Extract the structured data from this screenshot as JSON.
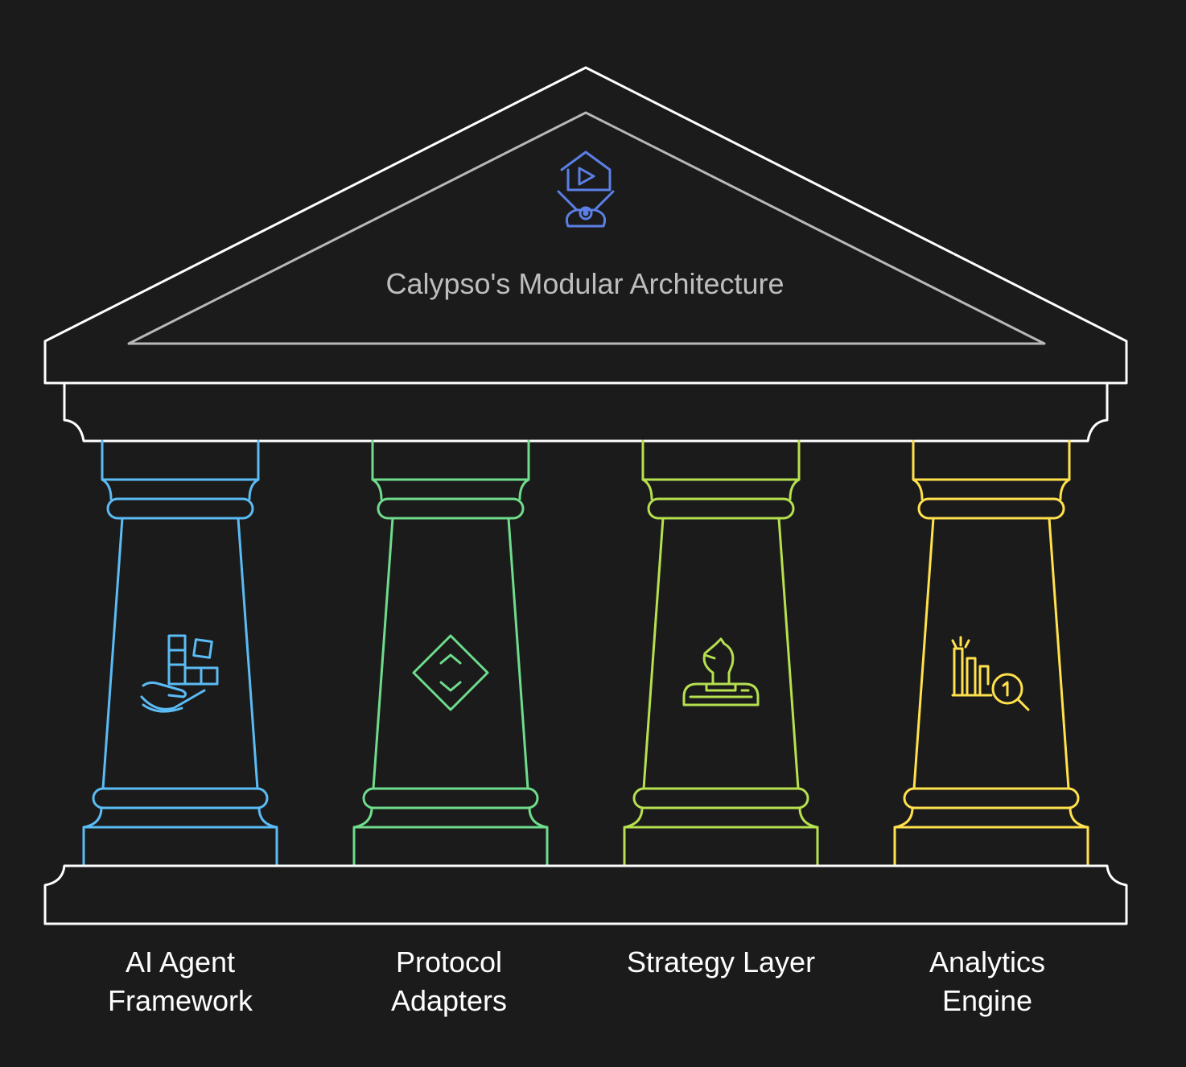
{
  "title": "Calypso's Modular Architecture",
  "colors": {
    "background": "#1b1b1b",
    "structure": "#ffffff",
    "inner_pediment": "#b8b8b8",
    "title_text": "#bdbdbd",
    "top_icon": "#5b7fe6"
  },
  "top_icon": "video-home-drone-icon",
  "pillars": [
    {
      "label": "AI Agent\nFramework",
      "color": "#5bbcf5",
      "icon": "hand-blocks-icon"
    },
    {
      "label": "Protocol\nAdapters",
      "color": "#6fdc8c",
      "icon": "diamond-chevrons-icon"
    },
    {
      "label": "Strategy Layer",
      "color": "#b6e04f",
      "icon": "chess-knight-icon"
    },
    {
      "label": "Analytics\nEngine",
      "color": "#ffe14d",
      "icon": "chart-magnifier-icon"
    }
  ]
}
